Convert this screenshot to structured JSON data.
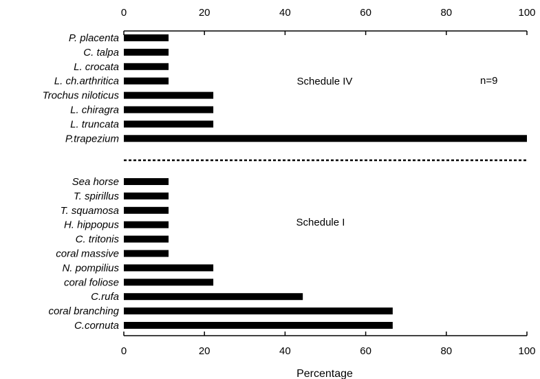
{
  "chart_data": {
    "type": "bar",
    "orientation": "horizontal",
    "xlabel": "Percentage",
    "xlim": [
      0,
      100
    ],
    "xticks": [
      0,
      20,
      40,
      60,
      80,
      100
    ],
    "annotations": {
      "n": "n=9"
    },
    "groups": [
      {
        "label": "Schedule IV",
        "categories": [
          "P. placenta",
          "C. talpa",
          "L. crocata",
          "L. ch.arthritica",
          "Trochus niloticus",
          "L. chiragra",
          "L. truncata",
          "P.trapezium"
        ],
        "values": [
          11.1,
          11.1,
          11.1,
          11.1,
          22.2,
          22.2,
          22.2,
          100
        ]
      },
      {
        "label": "Schedule I",
        "categories": [
          "Sea horse",
          "T. spirillus",
          "T. squamosa",
          "H. hippopus",
          "C. tritonis",
          "coral massive",
          "N. pompilius",
          "coral foliose",
          "C.rufa",
          "coral branching",
          "C.cornuta"
        ],
        "values": [
          11.1,
          11.1,
          11.1,
          11.1,
          11.1,
          11.1,
          22.2,
          22.2,
          44.4,
          66.7,
          66.7
        ]
      }
    ]
  }
}
